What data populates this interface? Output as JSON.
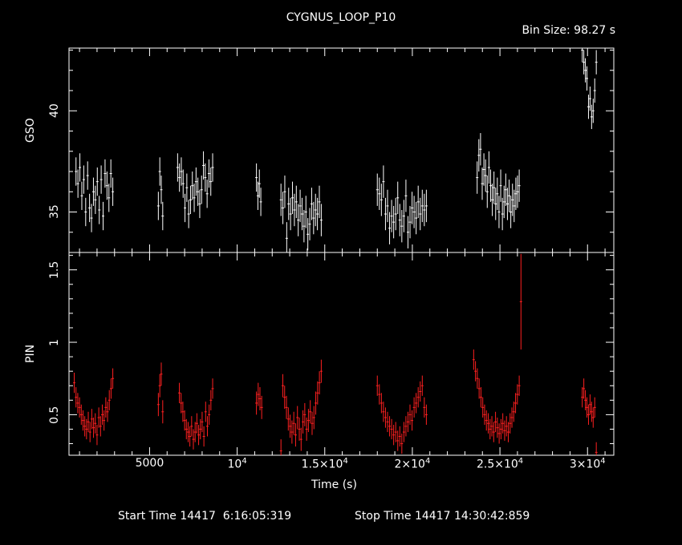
{
  "title": "CYGNUS_LOOP_P10",
  "bin_size_label": "Bin Size: 98.27 s",
  "footer": {
    "start_label": "Start Time 14417  6:16:05:319",
    "stop_label": "Stop Time 14417 14:30:42:859"
  },
  "colors": {
    "background": "#000000",
    "axes": "#ffffff",
    "gso": "#ffffff",
    "pin": "#ff2020"
  },
  "chart_data": [
    {
      "type": "scatter",
      "panel": "top",
      "ylabel": "GSO",
      "xlim": [
        400,
        31500
      ],
      "ylim": [
        33.0,
        43.1
      ],
      "yticks": [
        35,
        40
      ],
      "grid": false,
      "series": [
        {
          "color": "#ffffff",
          "segments": [
            {
              "x0": 800,
              "x1": 2900,
              "y": [
                37.0,
                36.4,
                37.2,
                35.8,
                36.6,
                35.0,
                36.8,
                35.2,
                34.7,
                36.0,
                35.6,
                36.5,
                35.1,
                36.6,
                34.8,
                36.9,
                36.3,
                35.7,
                36.9,
                36.0
              ],
              "err": 0.7
            },
            {
              "x0": 5500,
              "x1": 5750,
              "y": [
                35.3,
                37.0,
                36.1,
                34.8
              ],
              "err": 0.7
            },
            {
              "x0": 6600,
              "x1": 8600,
              "y": [
                37.2,
                36.7,
                37.0,
                36.4,
                35.2,
                36.2,
                34.9,
                35.6,
                36.3,
                35.7,
                36.5,
                36.0,
                35.4,
                36.1,
                37.3,
                36.7,
                35.9,
                36.9,
                36.5,
                37.2
              ],
              "err": 0.7
            },
            {
              "x0": 11100,
              "x1": 11350,
              "y": [
                36.7,
                35.8,
                36.4,
                35.5
              ],
              "err": 0.7
            },
            {
              "x0": 12500,
              "x1": 14800,
              "y": [
                35.6,
                35.2,
                36.0,
                33.7,
                35.4,
                34.9,
                35.7,
                35.1,
                35.5,
                34.6,
                35.3,
                34.9,
                34.3,
                35.0,
                33.9,
                34.4,
                35.4,
                34.7,
                35.1,
                34.9,
                35.5,
                34.6
              ],
              "err": 0.8
            },
            {
              "x0": 18000,
              "x1": 20800,
              "y": [
                36.1,
                35.9,
                35.6,
                36.5,
                34.9,
                35.3,
                34.2,
                34.8,
                34.5,
                34.9,
                35.7,
                34.6,
                34.3,
                34.8,
                35.8,
                34.0,
                34.5,
                35.2,
                35.0,
                34.7,
                35.5,
                34.9,
                35.3,
                35.1,
                35.3
              ],
              "err": 0.8
            },
            {
              "x0": 23700,
              "x1": 26100,
              "y": [
                36.7,
                37.8,
                38.1,
                36.4,
                37.1,
                36.8,
                36.0,
                37.2,
                36.3,
                35.6,
                36.2,
                35.4,
                35.9,
                35.0,
                36.3,
                34.9,
                35.5,
                36.1,
                35.4,
                35.8,
                35.0,
                35.6,
                35.3,
                35.9,
                36.0,
                36.3
              ],
              "err": 0.8
            },
            {
              "x0": 26200,
              "x1": 26200,
              "y": [
                33.0
              ],
              "err": 0.0
            },
            {
              "x0": 29700,
              "x1": 30500,
              "y": [
                43.0,
                42.4,
                42.0,
                41.6,
                40.2,
                40.6,
                39.7,
                40.0,
                41.0,
                42.4
              ],
              "err": 0.6
            }
          ]
        }
      ]
    },
    {
      "type": "scatter",
      "panel": "bottom",
      "ylabel": "PIN",
      "xlabel": "Time (s)",
      "xlim": [
        400,
        31500
      ],
      "ylim": [
        0.22,
        1.62
      ],
      "xticks": [
        {
          "value": 5000,
          "label": "5000",
          "exp": ""
        },
        {
          "value": 10000,
          "label": "10",
          "exp": "4"
        },
        {
          "value": 15000,
          "label": "1.5×10",
          "exp": "4"
        },
        {
          "value": 20000,
          "label": "2×10",
          "exp": "4"
        },
        {
          "value": 25000,
          "label": "2.5×10",
          "exp": "4"
        },
        {
          "value": 30000,
          "label": "3×10",
          "exp": "4"
        }
      ],
      "yticks": [
        {
          "value": 0.5,
          "label": "0.5"
        },
        {
          "value": 1,
          "label": "1"
        },
        {
          "value": 1.5,
          "label": "1.5"
        }
      ],
      "grid": false,
      "series": [
        {
          "color": "#ff2020",
          "segments": [
            {
              "x0": 700,
              "x1": 2900,
              "y": [
                0.72,
                0.62,
                0.58,
                0.55,
                0.5,
                0.46,
                0.42,
                0.4,
                0.45,
                0.38,
                0.47,
                0.41,
                0.44,
                0.36,
                0.48,
                0.42,
                0.5,
                0.46,
                0.55,
                0.52,
                0.6,
                0.68,
                0.75
              ],
              "err": 0.07
            },
            {
              "x0": 5500,
              "x1": 5750,
              "y": [
                0.57,
                0.7,
                0.78,
                0.52
              ],
              "err": 0.08
            },
            {
              "x0": 6700,
              "x1": 8600,
              "y": [
                0.65,
                0.58,
                0.52,
                0.46,
                0.4,
                0.38,
                0.35,
                0.42,
                0.33,
                0.38,
                0.44,
                0.36,
                0.4,
                0.45,
                0.35,
                0.52,
                0.42,
                0.5,
                0.6,
                0.68
              ],
              "err": 0.07
            },
            {
              "x0": 11100,
              "x1": 11400,
              "y": [
                0.58,
                0.64,
                0.61,
                0.55
              ],
              "err": 0.08
            },
            {
              "x0": 12500,
              "x1": 14800,
              "y": [
                0.25,
                0.7,
                0.62,
                0.55,
                0.47,
                0.42,
                0.38,
                0.44,
                0.36,
                0.48,
                0.4,
                0.33,
                0.45,
                0.5,
                0.4,
                0.46,
                0.52,
                0.44,
                0.48,
                0.58,
                0.65,
                0.72,
                0.8
              ],
              "err": 0.08
            },
            {
              "x0": 18000,
              "x1": 20800,
              "y": [
                0.7,
                0.64,
                0.58,
                0.52,
                0.48,
                0.45,
                0.42,
                0.4,
                0.36,
                0.38,
                0.32,
                0.35,
                0.3,
                0.38,
                0.42,
                0.45,
                0.5,
                0.46,
                0.55,
                0.58,
                0.62,
                0.66,
                0.7,
                0.55,
                0.5
              ],
              "err": 0.07
            },
            {
              "x0": 23500,
              "x1": 26100,
              "y": [
                0.88,
                0.8,
                0.75,
                0.68,
                0.62,
                0.55,
                0.5,
                0.46,
                0.44,
                0.4,
                0.42,
                0.38,
                0.45,
                0.41,
                0.37,
                0.4,
                0.44,
                0.39,
                0.42,
                0.38,
                0.44,
                0.48,
                0.52,
                0.58,
                0.64,
                0.7
              ],
              "err": 0.07
            },
            {
              "x0": 26200,
              "x1": 26200,
              "y": [
                1.28
              ],
              "err": 0.33
            },
            {
              "x0": 29700,
              "x1": 30500,
              "y": [
                0.62,
                0.68,
                0.6,
                0.55,
                0.5,
                0.57,
                0.52,
                0.48,
                0.55,
                0.24
              ],
              "err": 0.07
            }
          ]
        }
      ]
    }
  ]
}
